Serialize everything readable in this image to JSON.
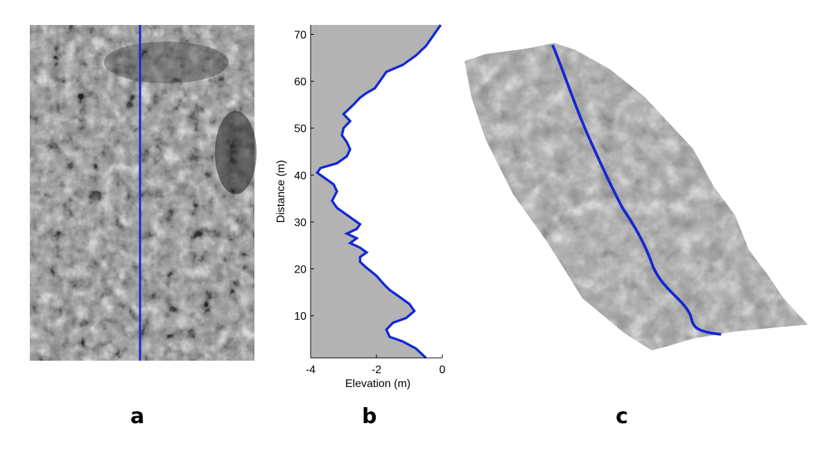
{
  "panel_labels": {
    "a": "a",
    "b": "b",
    "c": "c"
  },
  "colors": {
    "profile_line": "#1428d2",
    "shade": "#b3b3b3"
  },
  "chart_data": {
    "type": "line",
    "title": "",
    "xlabel": "Elevation (m)",
    "ylabel": "Distance (m)",
    "xlim": [
      -4,
      0
    ],
    "ylim": [
      1,
      72
    ],
    "xticks": [
      -4,
      -2,
      0
    ],
    "xtick_labels": [
      "-4",
      "-2",
      "0"
    ],
    "yticks": [
      10,
      20,
      30,
      40,
      50,
      60,
      70
    ],
    "ytick_labels": [
      "10",
      "20",
      "30",
      "40",
      "50",
      "60",
      "70"
    ],
    "fill_left_of_line": true,
    "grid": false,
    "series": [
      {
        "x": [
          -0.5,
          -0.8,
          -1.2,
          -1.6,
          -1.7,
          -1.5,
          -1.1,
          -0.85,
          -1.0,
          -1.3,
          -1.6,
          -1.75,
          -2.0,
          -2.35,
          -2.5,
          -2.5,
          -2.3,
          -2.5,
          -2.8,
          -2.6,
          -2.9,
          -2.6,
          -2.5,
          -2.7,
          -2.9,
          -3.2,
          -3.35,
          -3.2,
          -3.3,
          -3.6,
          -3.8,
          -3.7,
          -3.2,
          -2.9,
          -2.8,
          -2.9,
          -3.05,
          -3.0,
          -2.8,
          -3.0,
          -2.7,
          -2.5,
          -2.3,
          -2.05,
          -1.95,
          -1.7,
          -1.2,
          -0.8,
          -0.5,
          -0.05
        ],
        "y": [
          1,
          3,
          4.5,
          5.5,
          7,
          8.5,
          9.5,
          11,
          12.5,
          14,
          15.5,
          16.5,
          18.5,
          20.5,
          21.5,
          22.5,
          23.5,
          24.5,
          25.5,
          26.5,
          27.5,
          28.5,
          29.5,
          30.5,
          31.5,
          33,
          34.5,
          36.5,
          38,
          39.5,
          40.5,
          41.5,
          42.5,
          44,
          45.5,
          47,
          48.5,
          50,
          51.5,
          53,
          55,
          56.5,
          57.5,
          58.5,
          59.5,
          62,
          63.5,
          65.5,
          67.5,
          72
        ]
      }
    ]
  }
}
